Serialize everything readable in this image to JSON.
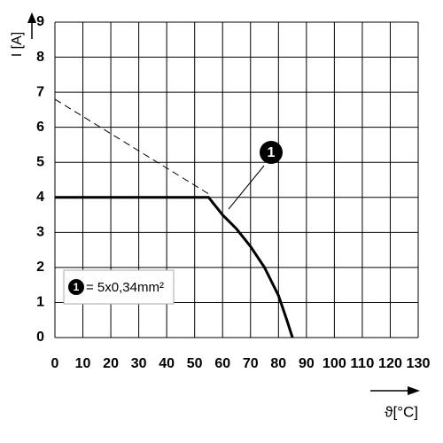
{
  "chart_data": {
    "type": "line",
    "x_label": "ϑ[°C]",
    "y_label": "I [A]",
    "xlim": [
      0,
      130
    ],
    "ylim": [
      0,
      9
    ],
    "xticks": [
      0,
      10,
      20,
      30,
      40,
      50,
      60,
      70,
      80,
      90,
      100,
      110,
      120,
      130
    ],
    "yticks": [
      0,
      1,
      2,
      3,
      4,
      5,
      6,
      7,
      8,
      9
    ],
    "grid": true,
    "series": [
      {
        "color": "#000000",
        "style": "solid",
        "x": [
          0,
          55,
          60,
          65,
          70,
          75,
          80,
          83,
          85
        ],
        "values": [
          4,
          4,
          3.5,
          3.1,
          2.6,
          2.0,
          1.2,
          0.5,
          0
        ]
      },
      {
        "color": "#000000",
        "style": "dashed",
        "x": [
          0,
          55
        ],
        "values": [
          6.8,
          4.1
        ]
      }
    ],
    "annotation": "1",
    "legend_text": "= 5x0,34mm²"
  }
}
